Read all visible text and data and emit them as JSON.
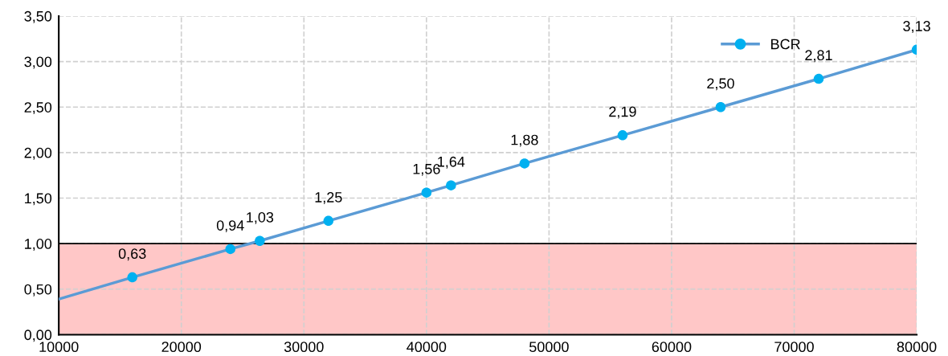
{
  "chart_data": {
    "type": "line",
    "x": [
      10000,
      16000,
      24000,
      26400,
      32000,
      40000,
      42000,
      48000,
      56000,
      64000,
      72000,
      80000
    ],
    "series": [
      {
        "name": "BCR",
        "color": "#5b9bd5",
        "colors": [
          "#00b0f0",
          "#00b0f0",
          "#00b0f0",
          "#00b0f0",
          "#00b0f0",
          "#00b0f0",
          "#00b0f0",
          "#00b0f0",
          "#00b0f0",
          "#00b0f0",
          "#00b0f0",
          "#00b0f0"
        ],
        "values": [
          0.39,
          0.63,
          0.94,
          1.03,
          1.25,
          1.56,
          1.64,
          1.88,
          2.19,
          2.5,
          2.81,
          3.13
        ],
        "value_labels": [
          null,
          "0,63",
          "0,94",
          "1,03",
          "1,25",
          "1,56",
          "1,64",
          "1,88",
          "2,19",
          "2,50",
          "2,81",
          "3,13"
        ]
      }
    ],
    "xlim": [
      10000,
      80000
    ],
    "xticks": [
      10000,
      20000,
      30000,
      40000,
      50000,
      60000,
      70000,
      80000
    ],
    "ylim": [
      0,
      3.5
    ],
    "yticks": [
      {
        "value": 0,
        "label": "0,00"
      },
      {
        "value": 0.5,
        "label": "0,50"
      },
      {
        "value": 1,
        "label": "1,00"
      },
      {
        "value": 1.5,
        "label": "1,50"
      },
      {
        "value": 2,
        "label": "2,00"
      },
      {
        "value": 2.5,
        "label": "2,50"
      },
      {
        "value": 3,
        "label": "3,00"
      },
      {
        "value": 3.5,
        "label": "3,50"
      }
    ],
    "bands": [
      {
        "axis": "y",
        "from": 0,
        "to": 1,
        "color": "#ffc7c7"
      }
    ],
    "ref_lines": [
      {
        "axis": "y",
        "value": 1,
        "color": "#000000",
        "line_style": "solid"
      }
    ],
    "grid": true,
    "legend": "top right",
    "marker": "circle",
    "line_style": "solid"
  }
}
